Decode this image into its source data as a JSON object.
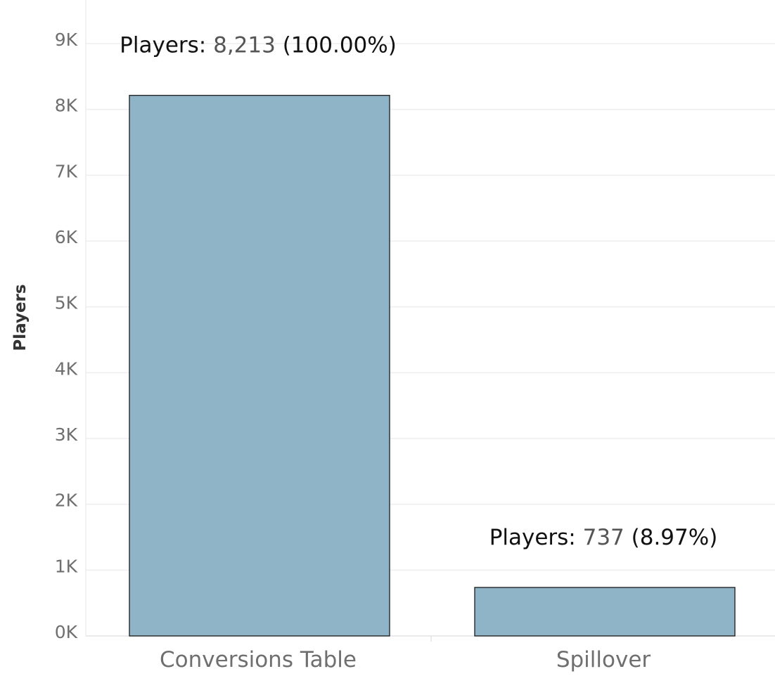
{
  "chart_data": {
    "type": "bar",
    "categories": [
      "Conversions Table",
      "Spillover"
    ],
    "values": [
      8213,
      737
    ],
    "data_labels": [
      {
        "prefix": "Players:",
        "value": "8,213",
        "pct": "(100.00%)"
      },
      {
        "prefix": "Players:",
        "value": "737",
        "pct": "(8.97%)"
      }
    ],
    "xlabel": "",
    "ylabel": "Players",
    "ylim": [
      0,
      9000
    ],
    "yticks": [
      0,
      1000,
      2000,
      3000,
      4000,
      5000,
      6000,
      7000,
      8000,
      9000
    ],
    "ytick_labels": [
      "0K",
      "1K",
      "2K",
      "3K",
      "4K",
      "5K",
      "6K",
      "7K",
      "8K",
      "9K"
    ],
    "grid": true,
    "colors": {
      "bar_fill": "#8fb3c7",
      "bar_edge": "#1a1a1a",
      "grid": "#eeeeee",
      "tick_text": "#6f6f6f"
    }
  }
}
